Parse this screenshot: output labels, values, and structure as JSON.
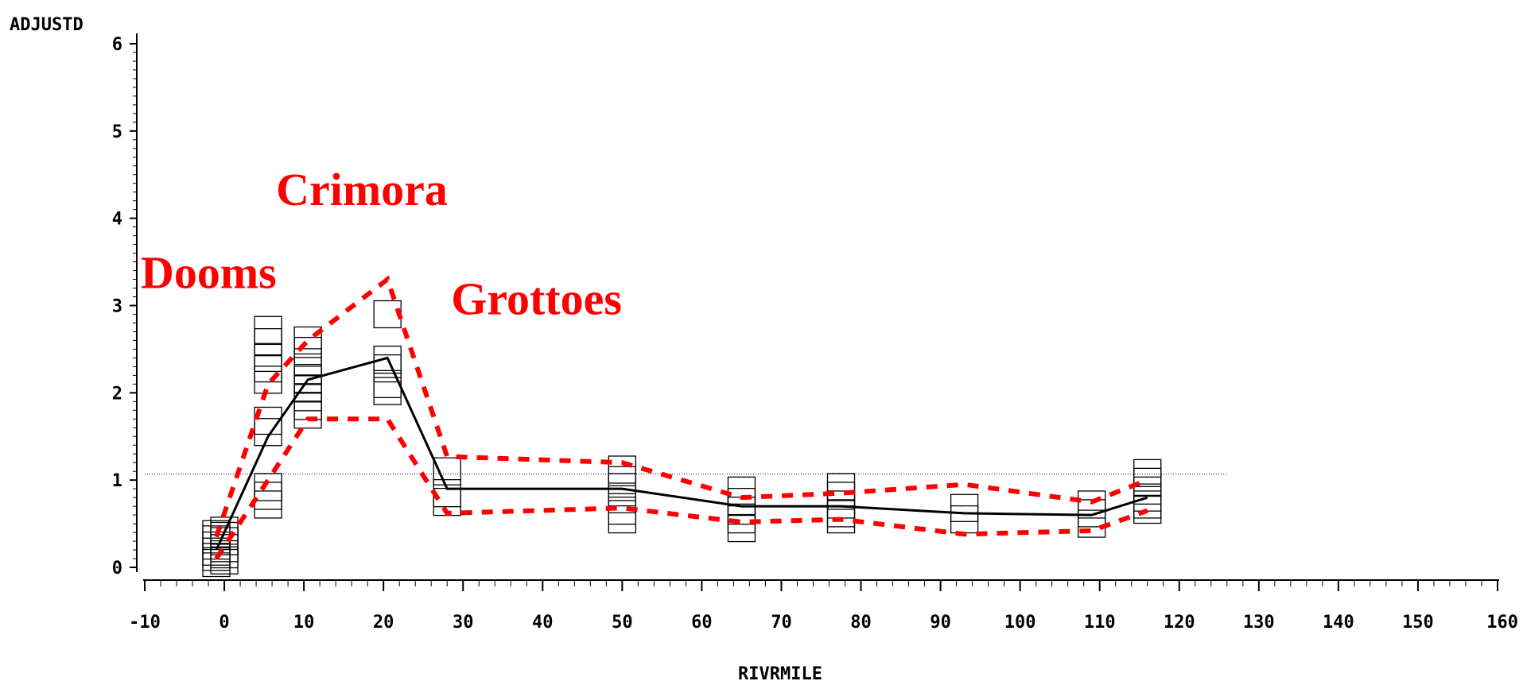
{
  "chart_data": {
    "type": "scatter",
    "ylabel": "ADJUSTD",
    "xlabel": "RIVRMILE",
    "xlim": [
      -10,
      160
    ],
    "ylim": [
      0,
      6
    ],
    "xticks": [
      -10,
      0,
      10,
      20,
      30,
      40,
      50,
      60,
      70,
      80,
      90,
      100,
      110,
      120,
      130,
      140,
      150,
      160
    ],
    "yticks": [
      0,
      1,
      2,
      3,
      4,
      5,
      6
    ],
    "reference_line": {
      "y": 1.07,
      "x_range": [
        -10,
        126
      ],
      "style": "dotted",
      "color": "#0000ff"
    },
    "annotations": [
      {
        "text": "Dooms",
        "x": -10.5,
        "y": 3.2
      },
      {
        "text": "Crimora",
        "x": 6.5,
        "y": 4.15
      },
      {
        "text": "Grottoes",
        "x": 28.5,
        "y": 2.9
      }
    ],
    "points": [
      [
        -1,
        0.05
      ],
      [
        -1,
        0.12
      ],
      [
        -1,
        0.18
      ],
      [
        -1,
        0.25
      ],
      [
        -1,
        0.32
      ],
      [
        -1,
        0.38
      ],
      [
        0,
        0.08
      ],
      [
        0,
        0.15
      ],
      [
        0,
        0.22
      ],
      [
        0,
        0.3
      ],
      [
        0,
        0.36
      ],
      [
        0,
        0.42
      ],
      [
        5.5,
        2.72
      ],
      [
        5.5,
        2.58
      ],
      [
        5.5,
        2.4
      ],
      [
        5.5,
        2.28
      ],
      [
        5.5,
        2.15
      ],
      [
        5.5,
        1.68
      ],
      [
        5.5,
        1.55
      ],
      [
        5.5,
        0.92
      ],
      [
        5.5,
        0.82
      ],
      [
        5.5,
        0.72
      ],
      [
        10.5,
        2.6
      ],
      [
        10.5,
        2.48
      ],
      [
        10.5,
        2.35
      ],
      [
        10.5,
        2.25
      ],
      [
        10.5,
        2.15
      ],
      [
        10.5,
        2.05
      ],
      [
        10.5,
        1.95
      ],
      [
        10.5,
        1.85
      ],
      [
        10.5,
        1.75
      ],
      [
        20.5,
        2.9
      ],
      [
        20.5,
        2.38
      ],
      [
        20.5,
        2.28
      ],
      [
        20.5,
        2.1
      ],
      [
        20.5,
        2.02
      ],
      [
        28,
        1.1
      ],
      [
        28,
        0.85
      ],
      [
        28,
        0.75
      ],
      [
        50,
        1.12
      ],
      [
        50,
        1.0
      ],
      [
        50,
        0.92
      ],
      [
        50,
        0.78
      ],
      [
        50,
        0.65
      ],
      [
        50,
        0.55
      ],
      [
        65,
        0.88
      ],
      [
        65,
        0.75
      ],
      [
        65,
        0.65
      ],
      [
        65,
        0.55
      ],
      [
        65,
        0.45
      ],
      [
        77.5,
        0.92
      ],
      [
        77.5,
        0.82
      ],
      [
        77.5,
        0.72
      ],
      [
        77.5,
        0.62
      ],
      [
        77.5,
        0.55
      ],
      [
        93,
        0.68
      ],
      [
        93,
        0.55
      ],
      [
        109,
        0.72
      ],
      [
        109,
        0.62
      ],
      [
        109,
        0.5
      ],
      [
        116,
        1.08
      ],
      [
        116,
        0.98
      ],
      [
        116,
        0.88
      ],
      [
        116,
        0.8
      ],
      [
        116,
        0.72
      ],
      [
        116,
        0.66
      ]
    ],
    "series": [
      {
        "style": "solid",
        "color": "#000000",
        "x": [
          -1,
          5.5,
          10.5,
          20.5,
          28,
          50,
          65,
          77.5,
          93,
          109,
          116
        ],
        "y": [
          0.2,
          1.5,
          2.15,
          2.4,
          0.9,
          0.9,
          0.7,
          0.7,
          0.62,
          0.6,
          0.8
        ]
      },
      {
        "style": "dashed",
        "color": "#ff0000",
        "x": [
          -1,
          5.5,
          10.5,
          20.5,
          28,
          50,
          65,
          77.5,
          93,
          109,
          116
        ],
        "y": [
          0.35,
          2.1,
          2.6,
          3.3,
          1.27,
          1.2,
          0.8,
          0.85,
          0.95,
          0.75,
          1.0
        ]
      },
      {
        "style": "dashed",
        "color": "#ff0000",
        "x": [
          -1,
          5.5,
          10.5,
          20.5,
          28,
          50,
          65,
          77.5,
          93,
          109,
          116
        ],
        "y": [
          0.1,
          1.0,
          1.7,
          1.7,
          0.62,
          0.68,
          0.52,
          0.55,
          0.38,
          0.42,
          0.65
        ]
      }
    ]
  }
}
